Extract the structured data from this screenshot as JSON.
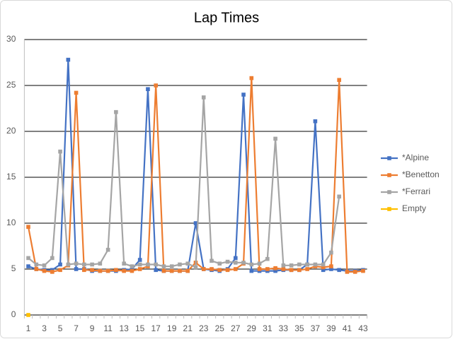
{
  "chart_data": {
    "type": "line",
    "title": "Lap Times",
    "categories": [
      1,
      null,
      3,
      null,
      5,
      null,
      7,
      null,
      9,
      null,
      11,
      null,
      13,
      null,
      15,
      null,
      17,
      null,
      19,
      null,
      21,
      null,
      23,
      null,
      25,
      null,
      27,
      null,
      29,
      null,
      31,
      null,
      33,
      null,
      35,
      null,
      37,
      null,
      39,
      null,
      41,
      null,
      43
    ],
    "series": [
      {
        "name": "*Alpine",
        "color": "#4472c4",
        "values": [
          5.3,
          5.0,
          4.9,
          4.9,
          5.5,
          27.8,
          5.0,
          5.0,
          4.8,
          4.8,
          4.8,
          4.8,
          4.9,
          5.0,
          6.0,
          24.6,
          4.9,
          4.8,
          4.8,
          4.8,
          4.8,
          10.0,
          5.0,
          4.9,
          4.8,
          5.0,
          6.2,
          24.0,
          4.8,
          4.8,
          4.8,
          4.8,
          4.9,
          4.9,
          4.9,
          5.5,
          21.1,
          4.9,
          5.0,
          4.9,
          4.8,
          4.8,
          4.9
        ]
      },
      {
        "name": "*Benetton",
        "color": "#ed7d31",
        "values": [
          9.6,
          5.0,
          4.8,
          4.7,
          4.9,
          5.4,
          24.2,
          4.9,
          4.9,
          4.8,
          4.8,
          4.9,
          4.8,
          4.8,
          5.0,
          5.3,
          25.0,
          4.8,
          4.8,
          4.8,
          4.8,
          5.7,
          5.0,
          5.0,
          4.9,
          4.9,
          5.0,
          5.6,
          25.8,
          5.0,
          5.0,
          5.1,
          5.0,
          4.9,
          4.9,
          5.0,
          5.3,
          5.2,
          5.3,
          25.6,
          4.7,
          4.7,
          4.8
        ]
      },
      {
        "name": "*Ferrari",
        "color": "#a5a5a5",
        "values": [
          6.2,
          5.5,
          5.4,
          6.2,
          17.8,
          5.5,
          5.6,
          5.5,
          5.5,
          5.6,
          7.1,
          22.1,
          5.6,
          5.3,
          5.5,
          5.5,
          5.5,
          5.3,
          5.3,
          5.5,
          5.6,
          5.2,
          23.7,
          5.9,
          5.6,
          5.8,
          5.7,
          5.7,
          5.5,
          5.6,
          6.1,
          19.2,
          5.4,
          5.4,
          5.5,
          5.5,
          5.5,
          5.5,
          6.8,
          12.9,
          null,
          null,
          null
        ]
      },
      {
        "name": "Empty",
        "color": "#ffc000",
        "values": [
          0,
          null,
          null,
          null,
          null,
          null,
          null,
          null,
          null,
          null,
          null,
          null,
          null,
          null,
          null,
          null,
          null,
          null,
          null,
          null,
          null,
          null,
          null,
          null,
          null,
          null,
          null,
          null,
          null,
          null,
          null,
          null,
          null,
          null,
          null,
          null,
          null,
          null,
          null,
          null,
          null,
          null,
          null
        ]
      }
    ],
    "ylim": [
      0,
      30
    ],
    "yticks": [
      0,
      5,
      10,
      15,
      20,
      25,
      30
    ],
    "grid": true,
    "legend": "right"
  }
}
